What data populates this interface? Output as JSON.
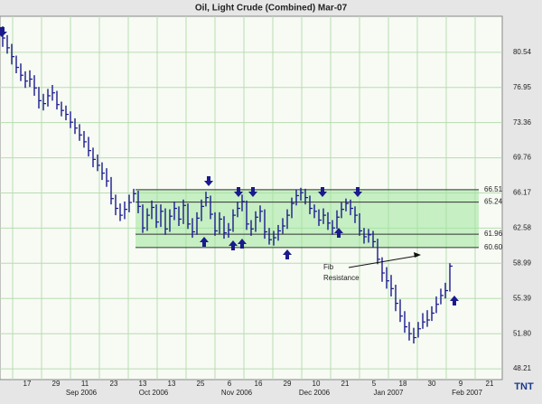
{
  "chart_data": {
    "type": "ohlc",
    "title": "Oil, Light Crude (Combined) Mar-07",
    "color": "#1a1a8c",
    "ylim": [
      47.11,
      84.22
    ],
    "yticks": [
      {
        "value": 48.21,
        "label": "48.21"
      },
      {
        "value": 51.8,
        "label": "51.80"
      },
      55.39,
      58.99,
      62.58,
      66.17,
      69.76,
      73.36,
      76.95,
      80.54
    ],
    "grid": true,
    "x_labels": [
      "17",
      "29",
      "11",
      "23",
      "13",
      "13",
      "25",
      "6",
      "16",
      "29",
      "10",
      "21",
      "5",
      "18",
      "30",
      "9",
      "21"
    ],
    "month_labels": [
      "Sep 2006",
      "Oct 2006",
      "Nov 2006",
      "Dec 2006",
      "Jan 2007",
      "Feb 2007"
    ],
    "high": [
      83.2,
      82.3,
      81.4,
      80.2,
      79.4,
      78.6,
      78.7,
      78.2,
      77.0,
      76.3,
      76.8,
      77.2,
      76.6,
      75.5,
      75.1,
      74.5,
      73.8,
      73.2,
      72.5,
      71.9,
      70.8,
      70.1,
      69.3,
      68.7,
      67.8,
      66.0,
      65.1,
      65.3,
      66.0,
      66.6,
      66.4,
      65.0,
      64.6,
      65.4,
      65.0,
      65.0,
      64.6,
      64.5,
      65.3,
      64.8,
      65.5,
      65.1,
      63.6,
      64.2,
      65.5,
      66.3,
      65.9,
      64.2,
      64.2,
      63.8,
      63.1,
      64.5,
      65.3,
      66.0,
      65.4,
      63.4,
      64.3,
      64.9,
      64.5,
      62.6,
      62.3,
      62.9,
      63.6,
      64.5,
      65.7,
      66.5,
      66.7,
      66.6,
      65.9,
      65.0,
      64.5,
      64.6,
      64.2,
      63.4,
      64.4,
      65.2,
      65.6,
      65.5,
      64.8,
      64.1,
      62.6,
      62.5,
      62.3,
      61.5,
      59.6,
      58.6,
      57.8,
      56.8,
      55.3,
      54.1,
      53.0,
      52.4,
      53.0,
      53.9,
      54.2,
      54.6,
      55.6,
      56.4,
      57.0,
      59.0
    ],
    "low": [
      81.1,
      80.4,
      79.3,
      78.4,
      77.6,
      76.9,
      77.0,
      76.1,
      74.8,
      74.6,
      75.0,
      75.6,
      74.7,
      74.0,
      73.6,
      72.8,
      72.2,
      71.5,
      70.8,
      69.9,
      68.8,
      68.4,
      67.5,
      66.8,
      65.0,
      63.9,
      63.3,
      63.5,
      64.2,
      65.2,
      64.1,
      62.1,
      62.3,
      63.5,
      62.6,
      62.7,
      61.9,
      62.2,
      63.4,
      62.8,
      63.0,
      62.5,
      61.6,
      61.9,
      63.3,
      64.8,
      63.5,
      61.8,
      62.0,
      61.5,
      61.6,
      62.2,
      63.7,
      64.3,
      62.4,
      61.8,
      62.2,
      63.2,
      61.5,
      60.9,
      60.8,
      61.3,
      62.0,
      62.5,
      63.6,
      64.9,
      65.4,
      65.0,
      64.0,
      63.6,
      62.8,
      63.0,
      62.4,
      61.9,
      62.5,
      63.6,
      64.3,
      63.9,
      63.1,
      61.8,
      61.0,
      61.1,
      60.6,
      58.9,
      57.1,
      56.4,
      55.6,
      54.1,
      53.0,
      51.9,
      51.1,
      50.8,
      51.4,
      52.3,
      52.5,
      53.1,
      53.9,
      54.8,
      55.4,
      56.1
    ],
    "close": [
      82.0,
      81.0,
      80.1,
      79.0,
      78.2,
      77.6,
      77.8,
      76.9,
      75.6,
      75.3,
      76.1,
      76.4,
      75.2,
      74.6,
      74.2,
      73.4,
      72.8,
      72.1,
      71.4,
      70.5,
      69.6,
      69.0,
      68.2,
      67.4,
      65.6,
      64.6,
      63.9,
      64.5,
      65.2,
      66.1,
      64.8,
      62.6,
      63.9,
      64.7,
      63.2,
      64.3,
      62.5,
      63.8,
      64.6,
      63.5,
      64.9,
      63.0,
      62.2,
      63.6,
      64.8,
      65.7,
      64.0,
      62.3,
      63.5,
      62.1,
      62.4,
      63.9,
      64.6,
      65.3,
      63.0,
      62.5,
      63.7,
      64.3,
      62.2,
      61.4,
      61.6,
      62.3,
      62.8,
      63.9,
      65.1,
      65.9,
      66.2,
      65.7,
      64.6,
      64.3,
      63.4,
      63.9,
      63.1,
      62.6,
      63.7,
      64.5,
      65.1,
      64.6,
      63.9,
      62.3,
      61.7,
      61.9,
      61.2,
      59.4,
      58.0,
      57.2,
      56.4,
      54.9,
      53.6,
      52.5,
      51.8,
      51.4,
      52.3,
      53.0,
      53.2,
      53.9,
      54.8,
      55.7,
      56.2,
      58.7
    ],
    "levels": [
      {
        "value": 66.51,
        "label": "66.51"
      },
      {
        "value": 65.24,
        "label": "65.24"
      },
      {
        "value": 61.96,
        "label": "61.96"
      },
      {
        "value": 60.6,
        "label": "60.60"
      }
    ],
    "annotation": [
      "Fib",
      "Resistance"
    ],
    "logo": "TNT"
  }
}
